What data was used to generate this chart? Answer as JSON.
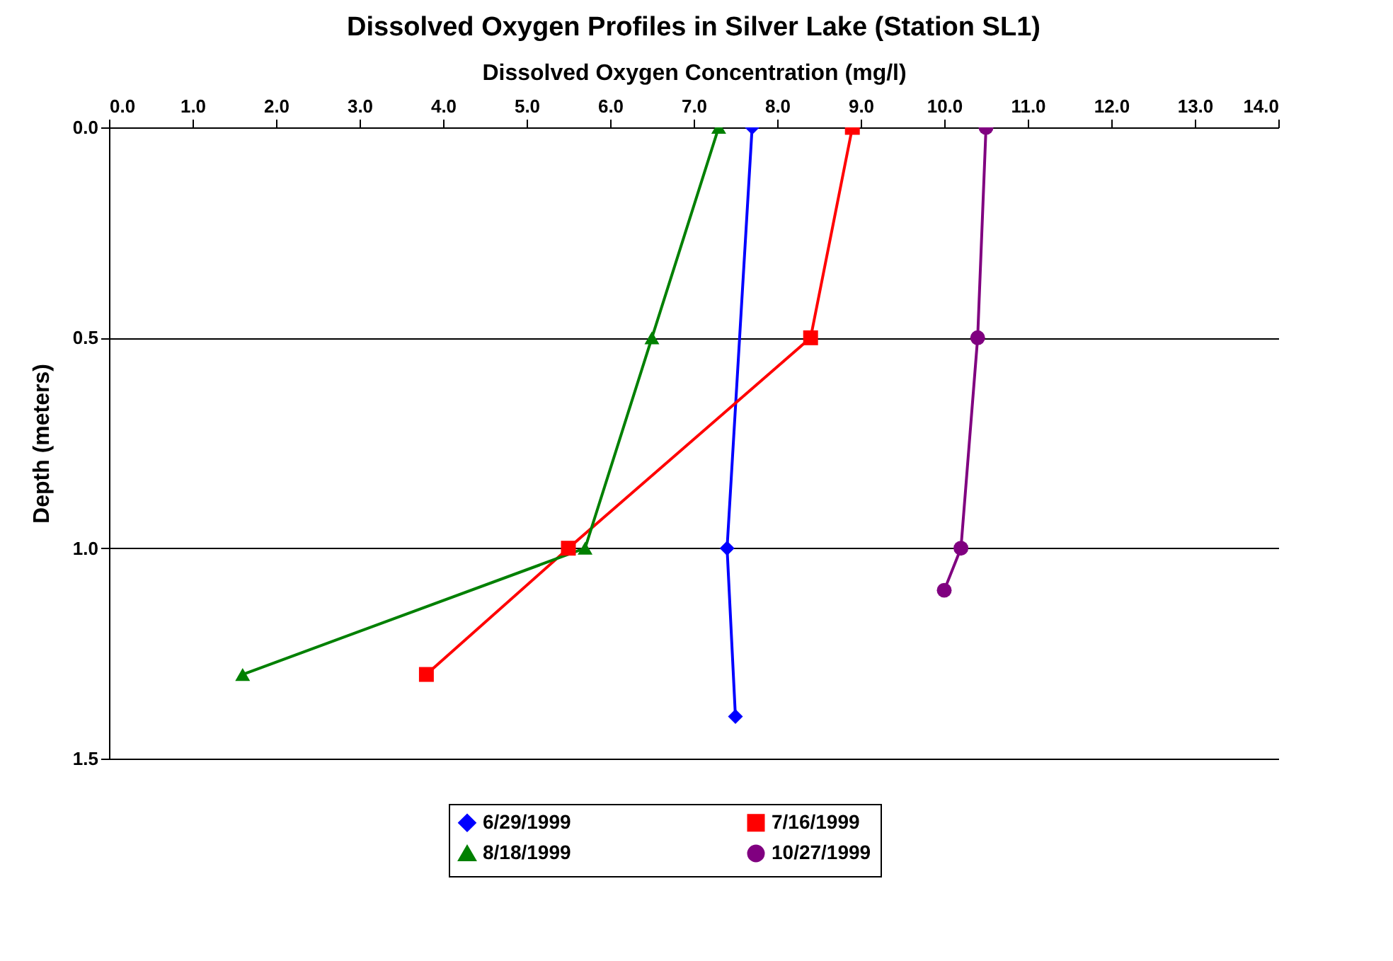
{
  "chart_data": {
    "type": "line",
    "title": "Dissolved Oxygen Profiles in Silver Lake (Station SL1)",
    "xlabel": "Dissolved Oxygen Concentration (mg/l)",
    "ylabel": "Depth (meters)",
    "xlim": [
      0,
      14
    ],
    "xticks": [
      {
        "value": 0,
        "label": "0.0"
      },
      {
        "value": 1,
        "label": "1.0"
      },
      {
        "value": 2,
        "label": "2.0"
      },
      {
        "value": 3,
        "label": "3.0"
      },
      {
        "value": 4,
        "label": "4.0"
      },
      {
        "value": 5,
        "label": "5.0"
      },
      {
        "value": 6,
        "label": "6.0"
      },
      {
        "value": 7,
        "label": "7.0"
      },
      {
        "value": 8,
        "label": "8.0"
      },
      {
        "value": 9,
        "label": "9.0"
      },
      {
        "value": 10,
        "label": "10.0"
      },
      {
        "value": 11,
        "label": "11.0"
      },
      {
        "value": 12,
        "label": "12.0"
      },
      {
        "value": 13,
        "label": "13.0"
      },
      {
        "value": 14,
        "label": "14.0"
      }
    ],
    "ylim": [
      1.5,
      0
    ],
    "yticks": [
      {
        "value": 0,
        "label": "0.0"
      },
      {
        "value": 0.5,
        "label": "0.5"
      },
      {
        "value": 1,
        "label": "1.0"
      },
      {
        "value": 1.5,
        "label": "1.5"
      }
    ],
    "grid": "y",
    "legend": "bottom",
    "line_style": "solid",
    "series": [
      {
        "name": "6/29/1999",
        "color": "#0000ff",
        "marker": "diamond",
        "x": [
          7.7,
          7.4,
          7.5
        ],
        "values": [
          0,
          1.0,
          1.4
        ]
      },
      {
        "name": "7/16/1999",
        "color": "#ff0000",
        "marker": "square",
        "x": [
          8.9,
          8.4,
          5.5,
          3.8
        ],
        "values": [
          0,
          0.5,
          1.0,
          1.3
        ]
      },
      {
        "name": "8/18/1999",
        "color": "#008000",
        "marker": "triangle",
        "x": [
          7.3,
          6.5,
          5.7,
          1.6
        ],
        "values": [
          0,
          0.5,
          1.0,
          1.3
        ]
      },
      {
        "name": "10/27/1999",
        "color": "#800080",
        "marker": "circle",
        "x": [
          10.5,
          10.4,
          10.2,
          10.0
        ],
        "values": [
          0,
          0.5,
          1.0,
          1.1
        ]
      }
    ]
  }
}
